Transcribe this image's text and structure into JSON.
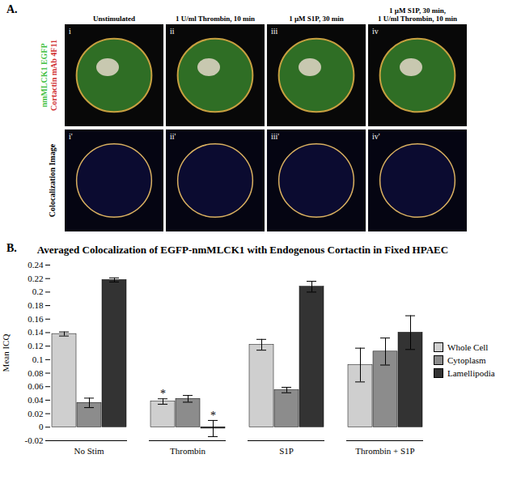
{
  "panel_a": {
    "label": "A.",
    "columns": [
      [
        "Unstimulated"
      ],
      [
        "1 U/ml Thrombin, 10 min"
      ],
      [
        "1 µM S1P, 30 min"
      ],
      [
        "1 µM S1P, 30 min,",
        "1 U/ml Thrombin, 10 min"
      ]
    ],
    "top_numerals": [
      "i",
      "ii",
      "iii",
      "iv"
    ],
    "bottom_numerals": [
      "i'",
      "ii'",
      "iii'",
      "iv'"
    ],
    "top_row_labels": [
      {
        "text": "nmMLCK1 EGFP",
        "color": "#3fbf3f"
      },
      {
        "text": "Cortactin mAb 4F11",
        "color": "#d03030"
      }
    ],
    "bottom_row_label": "Colocalization Image"
  },
  "chart_data": {
    "type": "bar",
    "label": "B.",
    "title": "Averaged Colocalization of EGFP-nmMLCK1 with Endogenous Cortactin in Fixed HPAEC",
    "y_label": "Mean ICQ",
    "categories": [
      "No Stim",
      "Thrombin",
      "S1P",
      "Thrombin + S1P"
    ],
    "series": [
      {
        "name": "Whole Cell",
        "color": "#cfcfcf",
        "values": [
          0.138,
          0.038,
          0.122,
          0.092
        ],
        "errors": [
          0.003,
          0.004,
          0.008,
          0.025
        ]
      },
      {
        "name": "Cytoplasm",
        "color": "#8c8c8c",
        "values": [
          0.036,
          0.042,
          0.055,
          0.112
        ],
        "errors": [
          0.007,
          0.005,
          0.004,
          0.02
        ]
      },
      {
        "name": "Lamellipodia",
        "color": "#333333",
        "values": [
          0.218,
          -0.002,
          0.208,
          0.14
        ],
        "errors": [
          0.003,
          0.012,
          0.008,
          0.025
        ]
      }
    ],
    "annotations": [
      {
        "category": "Thrombin",
        "series": "Whole Cell",
        "text": "*"
      },
      {
        "category": "Thrombin",
        "series": "Lamellipodia",
        "text": "*"
      }
    ],
    "ylim": [
      -0.02,
      0.24
    ],
    "yticks": [
      -0.02,
      0,
      0.02,
      0.04,
      0.06,
      0.08,
      0.1,
      0.12,
      0.14,
      0.16,
      0.18,
      0.2,
      0.22,
      0.24
    ],
    "legend": "right",
    "grid": false
  }
}
